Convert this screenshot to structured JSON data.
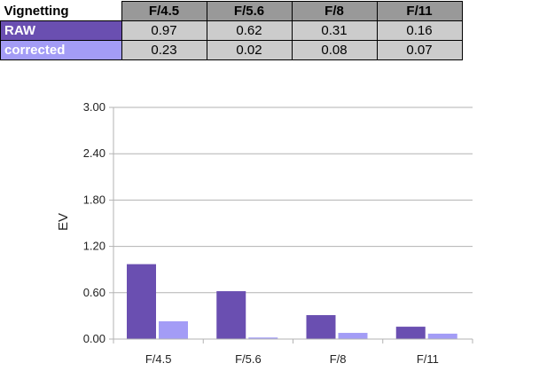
{
  "table": {
    "corner": "Vignetting",
    "headers": [
      "F/4.5",
      "F/5.6",
      "F/8",
      "F/11"
    ],
    "rows": [
      {
        "label": "RAW",
        "color": "#6a4fb1",
        "values": [
          "0.97",
          "0.62",
          "0.31",
          "0.16"
        ]
      },
      {
        "label": "corrected",
        "color": "#a39cf6",
        "values": [
          "0.23",
          "0.02",
          "0.08",
          "0.07"
        ]
      }
    ]
  },
  "chart_data": {
    "type": "bar",
    "categories": [
      "F/4.5",
      "F/5.6",
      "F/8",
      "F/11"
    ],
    "series": [
      {
        "name": "RAW",
        "color": "#6a4fb1",
        "values": [
          0.97,
          0.62,
          0.31,
          0.16
        ]
      },
      {
        "name": "corrected",
        "color": "#a39cf6",
        "values": [
          0.23,
          0.02,
          0.08,
          0.07
        ]
      }
    ],
    "ylabel": "EV",
    "ylim": [
      0,
      3.0
    ],
    "yticks": [
      "0.00",
      "0.60",
      "1.20",
      "1.80",
      "2.40",
      "3.00"
    ],
    "grid": true,
    "legend": "none"
  }
}
